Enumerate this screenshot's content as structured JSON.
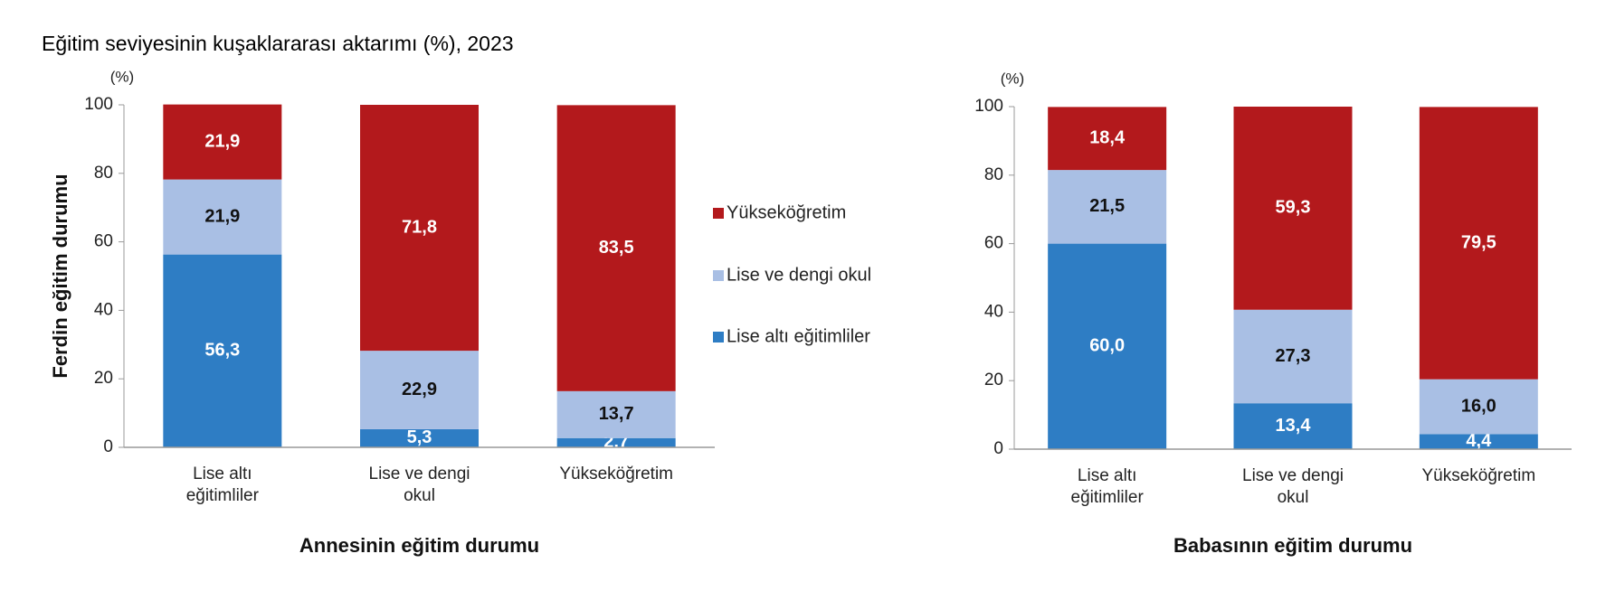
{
  "title": "Eğitim seviyesinin kuşaklararası aktarımı (%), 2023",
  "chart_data": [
    {
      "type": "bar",
      "stacked": true,
      "unit": "(%)",
      "ylabel": "Ferdin eğitim durumu",
      "xlabel": "Annesinin eğitim durumu",
      "categories": [
        "Lise altı eğitimliler",
        "Lise ve dengi okul",
        "Yükseköğretim"
      ],
      "series": [
        {
          "name": "Lise altı eğitimliler",
          "color": "#2e7dc4",
          "values": [
            56.3,
            5.3,
            2.7
          ],
          "value_labels": [
            "56,3",
            "5,3",
            "2,7"
          ]
        },
        {
          "name": "Lise ve dengi okul",
          "color": "#a9bfe4",
          "values": [
            21.9,
            22.9,
            13.7
          ],
          "value_labels": [
            "21,9",
            "22,9",
            "13,7"
          ]
        },
        {
          "name": "Yükseköğretim",
          "color": "#b3191c",
          "values": [
            21.9,
            71.8,
            83.5
          ],
          "value_labels": [
            "21,9",
            "71,8",
            "83,5"
          ]
        }
      ],
      "ylim": [
        0,
        100
      ],
      "yticks": [
        0,
        20,
        40,
        60,
        80,
        100
      ]
    },
    {
      "type": "bar",
      "stacked": true,
      "unit": "(%)",
      "xlabel": "Babasının eğitim durumu",
      "categories": [
        "Lise altı eğitimliler",
        "Lise ve dengi okul",
        "Yükseköğretim"
      ],
      "series": [
        {
          "color": "#2e7dc4",
          "values": [
            60.0,
            13.4,
            4.4
          ],
          "value_labels": [
            "60,0",
            "13,4",
            "4,4"
          ]
        },
        {
          "color": "#a9bfe4",
          "values": [
            21.5,
            27.3,
            16.0
          ],
          "value_labels": [
            "21,5",
            "27,3",
            "16,0"
          ]
        },
        {
          "color": "#b3191c",
          "values": [
            18.4,
            59.3,
            79.5
          ],
          "value_labels": [
            "18,4",
            "59,3",
            "79,5"
          ]
        }
      ],
      "ylim": [
        0,
        100
      ],
      "yticks": [
        0,
        20,
        40,
        60,
        80,
        100
      ]
    }
  ]
}
